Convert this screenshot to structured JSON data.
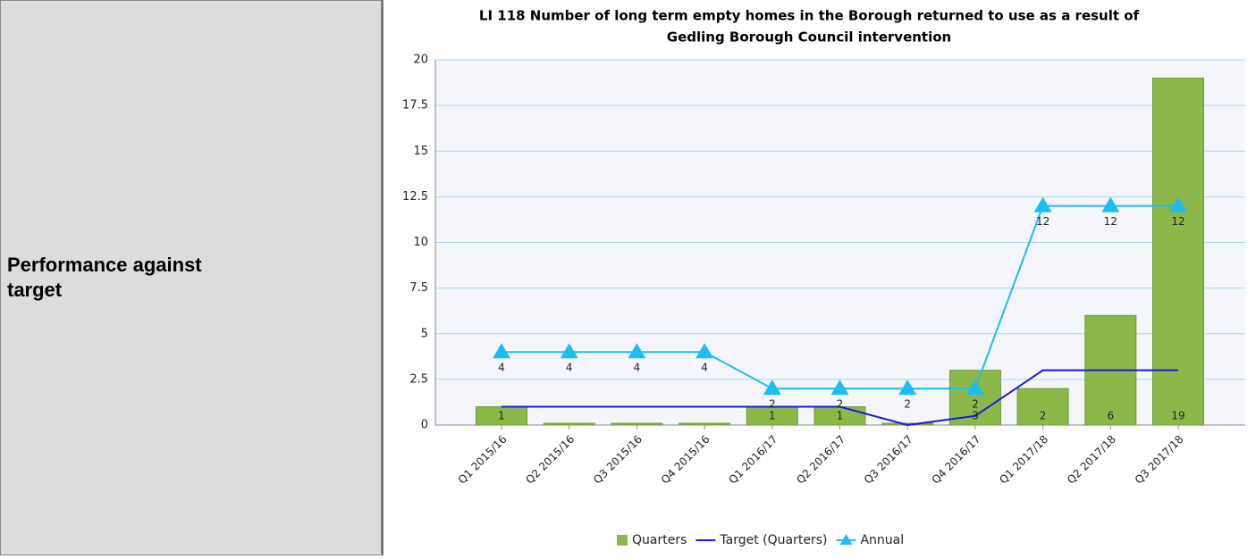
{
  "row_label": "Performance against target",
  "chart_data": {
    "type": "bar",
    "title": [
      "LI 118 Number of long term empty homes in the Borough returned to use as a result of",
      "Gedling Borough Council intervention"
    ],
    "categories": [
      "Q1 2015/16",
      "Q2 2015/16",
      "Q3 2015/16",
      "Q4 2015/16",
      "Q1 2016/17",
      "Q2 2016/17",
      "Q3 2016/17",
      "Q4 2016/17",
      "Q1 2017/18",
      "Q2 2017/18",
      "Q3 2017/18"
    ],
    "series": [
      {
        "name": "Quarters",
        "type": "bar",
        "color": "#8cb84a",
        "values": [
          1,
          0,
          0,
          0,
          1,
          1,
          0,
          3,
          2,
          6,
          19
        ],
        "value_labels": [
          "1",
          null,
          null,
          null,
          "1",
          "1",
          null,
          "3",
          "2",
          "6",
          "19"
        ]
      },
      {
        "name": "Target (Quarters)",
        "type": "line",
        "color": "#1a1adc",
        "values": [
          1,
          1,
          1,
          1,
          1,
          1,
          0,
          0.5,
          3,
          3,
          3
        ]
      },
      {
        "name": "Annual",
        "type": "line",
        "marker": "triangle",
        "color": "#1cbdf0",
        "values": [
          4,
          4,
          4,
          4,
          2,
          2,
          2,
          2,
          12,
          12,
          12
        ],
        "value_labels": [
          "4",
          "4",
          "4",
          "4",
          "2",
          "2",
          "2",
          "2",
          "12",
          "12",
          "12"
        ]
      }
    ],
    "ylim": [
      0,
      20
    ],
    "yticks": [
      0,
      2.5,
      5,
      7.5,
      10,
      12.5,
      15,
      17.5,
      20
    ],
    "grid": true
  }
}
